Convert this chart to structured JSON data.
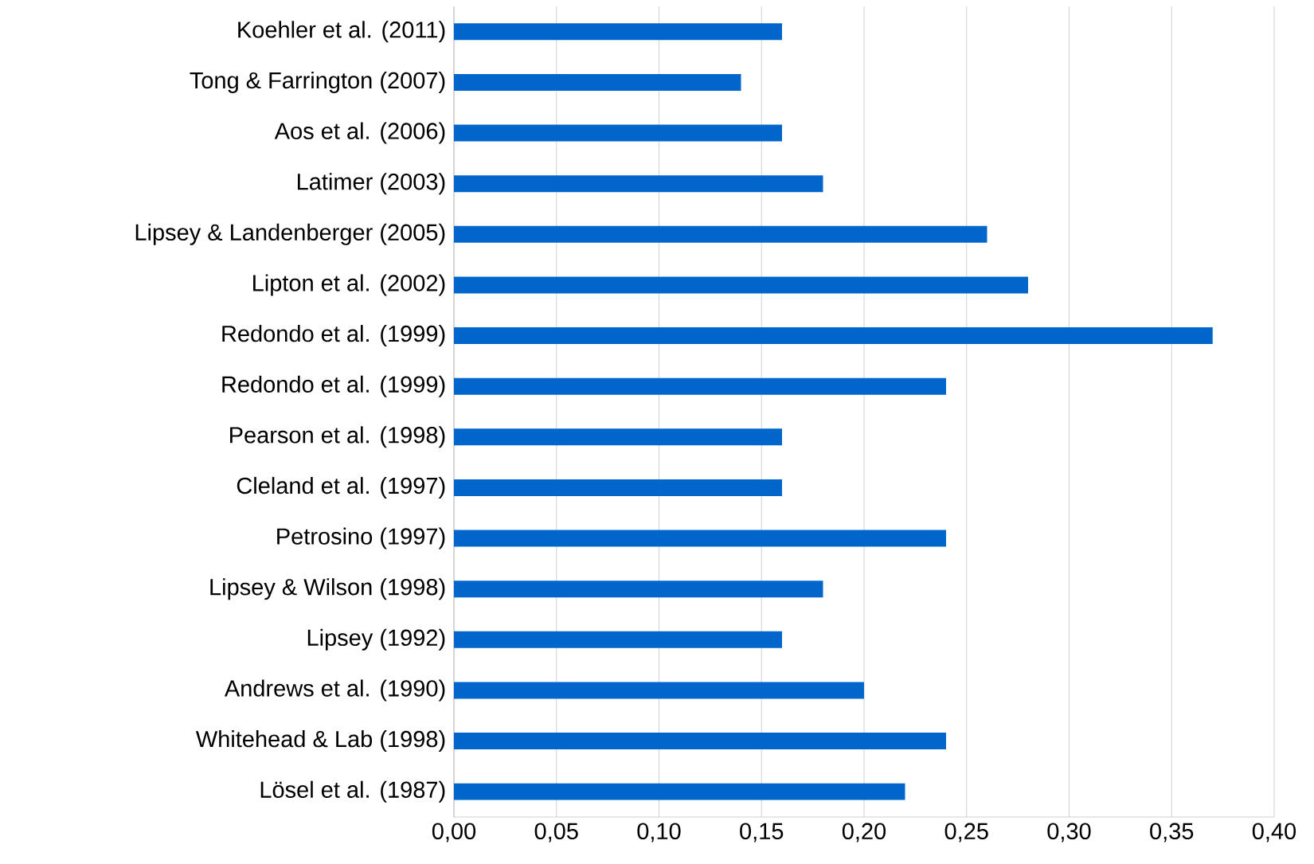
{
  "chart_data": {
    "type": "bar",
    "orientation": "horizontal",
    "categories": [
      "Koehler et al. (2011)",
      "Tong & Farrington (2007)",
      "Aos et al. (2006)",
      "Latimer (2003)",
      "Lipsey & Landenberger (2005)",
      "Lipton et al. (2002)",
      "Redondo et al. (1999)",
      "Redondo et al. (1999)",
      "Pearson et al. (1998)",
      "Cleland et al. (1997)",
      "Petrosino (1997)",
      "Lipsey & Wilson (1998)",
      "Lipsey (1992)",
      "Andrews et al. (1990)",
      "Whitehead & Lab (1998)",
      "Lösel et al. (1987)"
    ],
    "values": [
      0.16,
      0.14,
      0.16,
      0.18,
      0.26,
      0.28,
      0.37,
      0.24,
      0.16,
      0.16,
      0.24,
      0.18,
      0.16,
      0.2,
      0.24,
      0.22
    ],
    "color": "#0066cc",
    "xlim": [
      0,
      0.4
    ],
    "xticks": [
      {
        "value": 0,
        "label": "0,00"
      },
      {
        "value": 0.05,
        "label": "0,05"
      },
      {
        "value": 0.1,
        "label": "0,10"
      },
      {
        "value": 0.15,
        "label": "0,15"
      },
      {
        "value": 0.2,
        "label": "0,20"
      },
      {
        "value": 0.25,
        "label": "0,25"
      },
      {
        "value": 0.3,
        "label": "0,30"
      },
      {
        "value": 0.35,
        "label": "0,35"
      },
      {
        "value": 0.4,
        "label": "0,40"
      }
    ],
    "grid": "x"
  }
}
